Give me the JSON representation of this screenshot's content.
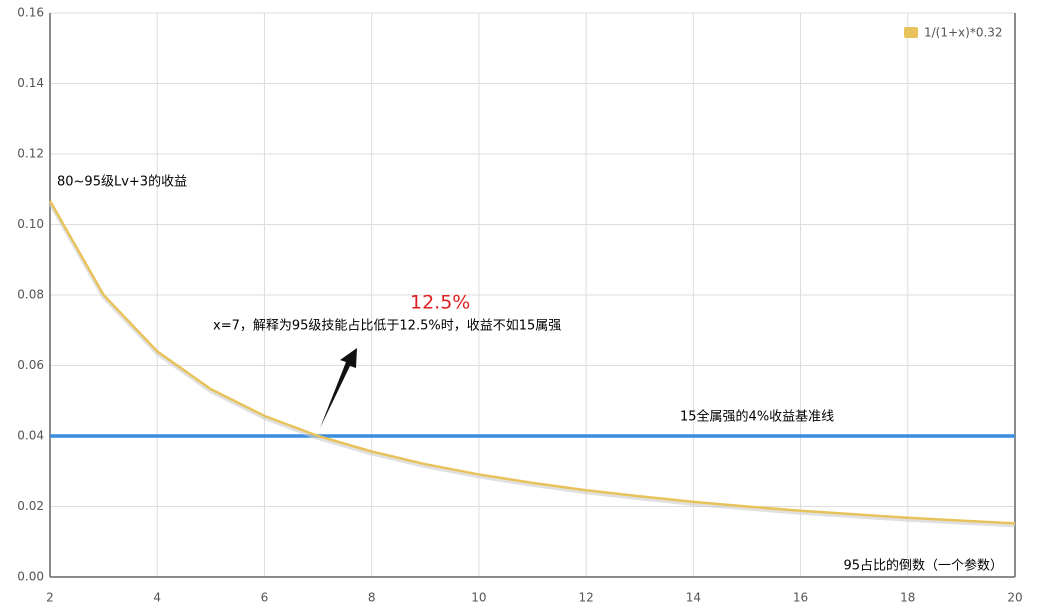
{
  "chart_data": {
    "type": "line",
    "x": [
      2,
      3,
      4,
      5,
      6,
      7,
      8,
      9,
      10,
      11,
      12,
      13,
      14,
      15,
      16,
      17,
      18,
      19,
      20
    ],
    "series": [
      {
        "name": "1/(1+x)*0.32",
        "color": "#e8c25a",
        "values": [
          0.1067,
          0.08,
          0.064,
          0.0533,
          0.0457,
          0.04,
          0.0356,
          0.032,
          0.0291,
          0.0267,
          0.0246,
          0.0229,
          0.0213,
          0.02,
          0.0188,
          0.0178,
          0.0168,
          0.016,
          0.0152
        ]
      }
    ],
    "baseline": {
      "value": 0.04,
      "label": "15全属强的4%收益基准线",
      "color": "#3a8ee0"
    },
    "xlim": [
      2,
      20
    ],
    "xticks": [
      2,
      4,
      6,
      8,
      10,
      12,
      14,
      16,
      18,
      20
    ],
    "ylim": [
      0,
      0.16
    ],
    "yticks": [
      {
        "value": 0,
        "label": "0.00"
      },
      {
        "value": 0.02,
        "label": "0.02"
      },
      {
        "value": 0.04,
        "label": "0.04"
      },
      {
        "value": 0.06,
        "label": "0.06"
      },
      {
        "value": 0.08,
        "label": "0.08"
      },
      {
        "value": 0.1,
        "label": "0.10"
      },
      {
        "value": 0.12,
        "label": "0.12"
      },
      {
        "value": 0.14,
        "label": "0.14"
      },
      {
        "value": 0.16,
        "label": "0.16"
      }
    ],
    "x_label": "95占比的倒数（一个参数）",
    "annotations": [
      "80~95级Lv+3的收益",
      "x=7，解释为95级技能占比低于12.5%时，收益不如15属强",
      "12.5%"
    ],
    "grid": true,
    "legend": "top-right"
  }
}
